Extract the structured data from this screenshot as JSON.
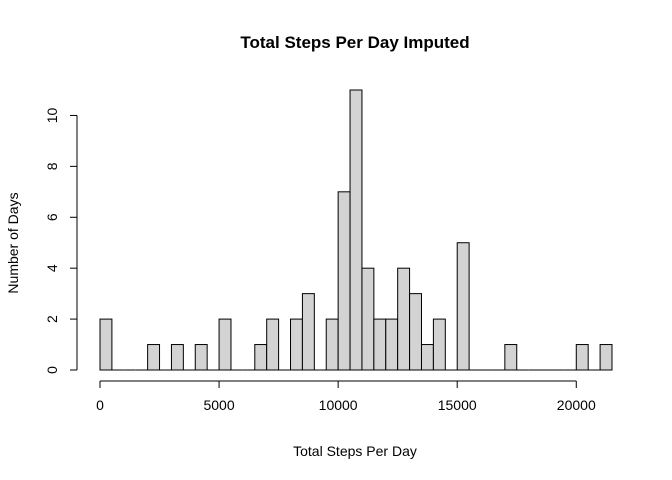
{
  "chart_data": {
    "type": "bar",
    "title": "Total Steps Per Day Imputed",
    "xlabel": "Total Steps Per Day",
    "ylabel": "Number of Days",
    "bin_width": 500,
    "x_start": 0,
    "counts": [
      2,
      0,
      0,
      0,
      1,
      0,
      1,
      0,
      1,
      0,
      2,
      0,
      0,
      1,
      2,
      0,
      2,
      3,
      0,
      2,
      7,
      11,
      4,
      2,
      2,
      4,
      3,
      1,
      2,
      0,
      5,
      0,
      0,
      0,
      1,
      0,
      0,
      0,
      0,
      0,
      1,
      0,
      1
    ],
    "xlim": [
      0,
      21500
    ],
    "ylim": [
      0,
      11
    ],
    "x_ticks": [
      0,
      5000,
      10000,
      15000,
      20000
    ],
    "y_ticks": [
      0,
      2,
      4,
      6,
      8,
      10
    ],
    "grid": false,
    "bar_color": "#d3d3d3"
  }
}
